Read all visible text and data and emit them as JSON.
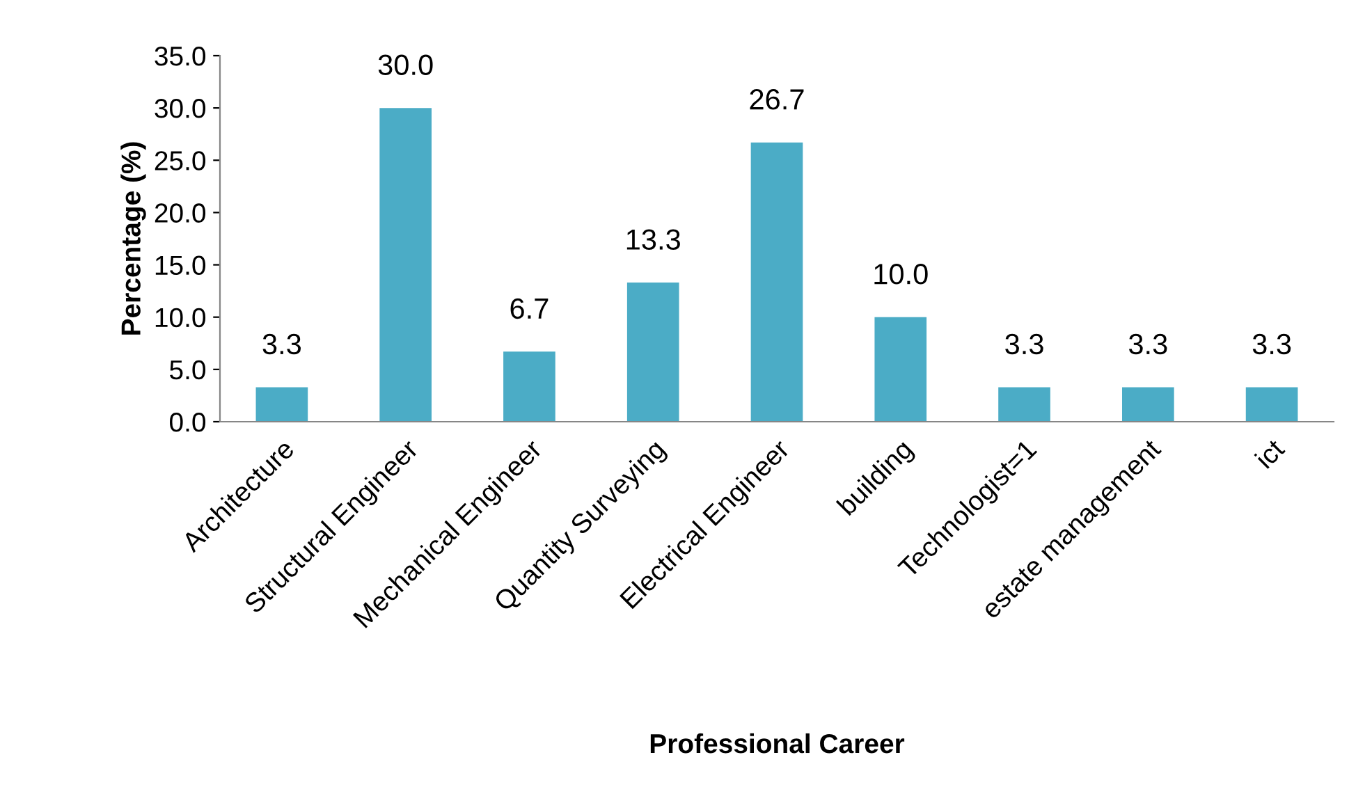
{
  "chart_data": {
    "type": "bar",
    "xlabel": "Professional Career",
    "ylabel": "Percentage (%)",
    "categories": [
      "Architecture",
      "Structural Engineer",
      "Mechanical Engineer",
      "Quantity Surveying",
      "Electrical Engineer",
      "building",
      "Technologist=1",
      "estate management",
      "ict"
    ],
    "values": [
      3.3,
      30.0,
      6.7,
      13.3,
      26.7,
      10.0,
      3.3,
      3.3,
      3.3
    ],
    "color": "#4bacc6",
    "ylim": [
      0,
      35
    ],
    "yticks": [
      {
        "value": 0,
        "label": "0.0"
      },
      {
        "value": 5,
        "label": "5.0"
      },
      {
        "value": 10,
        "label": "10.0"
      },
      {
        "value": 15,
        "label": "15.0"
      },
      {
        "value": 20,
        "label": "20.0"
      },
      {
        "value": 25,
        "label": "25.0"
      },
      {
        "value": 30,
        "label": "30.0"
      },
      {
        "value": 35,
        "label": "35.0"
      }
    ],
    "value_labels": [
      "3.3",
      "30.0",
      "6.7",
      "13.3",
      "26.7",
      "10.0",
      "3.3",
      "3.3",
      "3.3"
    ],
    "grid": false,
    "legend": false
  }
}
